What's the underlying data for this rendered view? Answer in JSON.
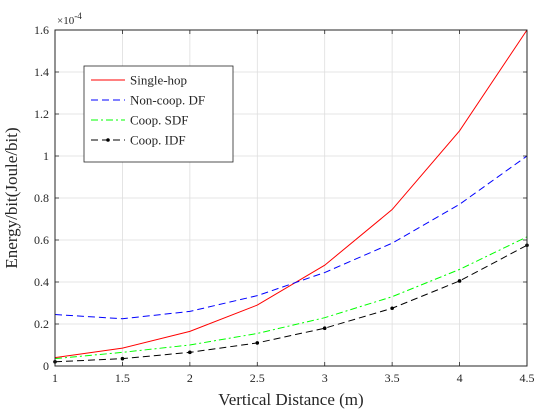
{
  "chart_data": {
    "type": "line",
    "title": "",
    "xlabel": "Vertical Distance (m)",
    "ylabel": "Energy/bit(Joule/bit)",
    "y_exponent_label": "×10",
    "y_exponent_power": "-4",
    "xlim": [
      1,
      4.5
    ],
    "ylim": [
      0,
      1.6
    ],
    "xticks": [
      1,
      1.5,
      2,
      2.5,
      3,
      3.5,
      4,
      4.5
    ],
    "xtick_labels": [
      "1",
      "1.5",
      "2",
      "2.5",
      "3",
      "3.5",
      "4",
      "4.5"
    ],
    "yticks": [
      0,
      0.2,
      0.4,
      0.6,
      0.8,
      1,
      1.2,
      1.4,
      1.6
    ],
    "ytick_labels": [
      "0",
      "0.2",
      "0.4",
      "0.6",
      "0.8",
      "1",
      "1.2",
      "1.4",
      "1.6"
    ],
    "grid": true,
    "legend_position": "top-left",
    "x": [
      1,
      1.5,
      2,
      2.5,
      3,
      3.5,
      4,
      4.5
    ],
    "series": [
      {
        "name": "Single-hop",
        "values": [
          0.04,
          0.085,
          0.165,
          0.29,
          0.48,
          0.745,
          1.12,
          1.6
        ],
        "color": "#ff0000",
        "dash": "solid",
        "marker": "none"
      },
      {
        "name": "Non-coop. DF",
        "values": [
          0.245,
          0.225,
          0.26,
          0.335,
          0.445,
          0.585,
          0.77,
          1.0
        ],
        "color": "#0000ff",
        "dash": "dashed",
        "marker": "none"
      },
      {
        "name": "Coop. SDF",
        "values": [
          0.035,
          0.065,
          0.1,
          0.155,
          0.23,
          0.33,
          0.46,
          0.615
        ],
        "color": "#00ff00",
        "dash": "dashdot",
        "marker": "none"
      },
      {
        "name": "Coop. IDF",
        "values": [
          0.02,
          0.035,
          0.065,
          0.11,
          0.18,
          0.275,
          0.405,
          0.575
        ],
        "color": "#000000",
        "dash": "dashed",
        "marker": "dot"
      }
    ]
  }
}
